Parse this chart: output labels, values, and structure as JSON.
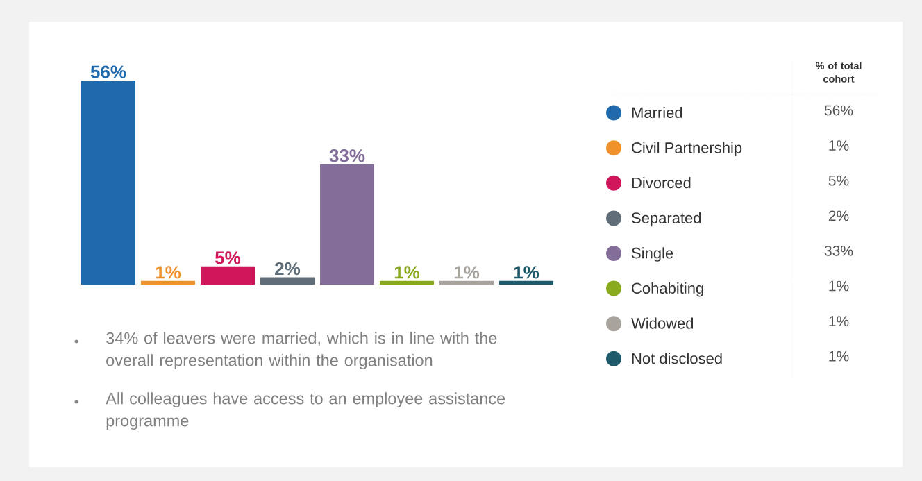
{
  "chart_data": {
    "type": "bar",
    "categories": [
      null
    ],
    "series": [
      {
        "name": "Married",
        "color": "#1f6aad",
        "values": [
          56
        ],
        "value_labels": [
          "56%"
        ]
      },
      {
        "name": "Civil Partnership",
        "color": "#f0922b",
        "values": [
          1
        ],
        "value_labels": [
          "1%"
        ]
      },
      {
        "name": "Divorced",
        "color": "#d0165a",
        "values": [
          5
        ],
        "value_labels": [
          "5%"
        ]
      },
      {
        "name": "Separated",
        "color": "#5f6e78",
        "values": [
          2
        ],
        "value_labels": [
          "2%"
        ]
      },
      {
        "name": "Single",
        "color": "#836e9a",
        "values": [
          33
        ],
        "value_labels": [
          "33%"
        ]
      },
      {
        "name": "Cohabiting",
        "color": "#8aaa1e",
        "values": [
          1
        ],
        "value_labels": [
          "1%"
        ]
      },
      {
        "name": "Widowed",
        "color": "#a8a39d",
        "values": [
          1
        ],
        "value_labels": [
          "1%"
        ]
      },
      {
        "name": "Not disclosed",
        "color": "#1f5a6a",
        "values": [
          1
        ],
        "value_labels": [
          "1%"
        ]
      }
    ],
    "legend": "right",
    "legend_title": "% of total cohort",
    "annotations": [
      "34% of leavers were married, which is in line with the overall representation within the organisation",
      "All colleagues have access to an employee assistance programme"
    ]
  }
}
